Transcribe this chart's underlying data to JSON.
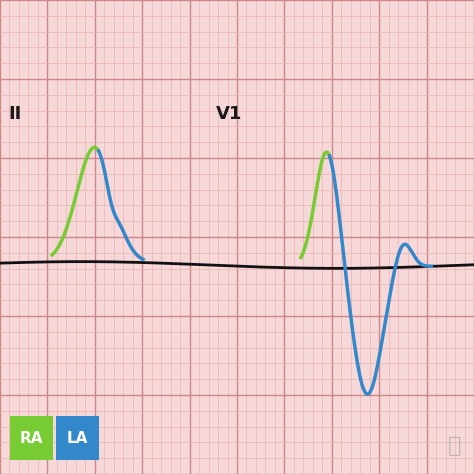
{
  "bg_color": "#f7d8d8",
  "grid_minor_color": "#e8b4b4",
  "grid_major_color": "#cc8888",
  "label_II": "II",
  "label_V1": "V1",
  "label_RA": "RA",
  "label_LA": "LA",
  "ra_color": "#77cc33",
  "la_color": "#3388cc",
  "baseline_color": "#111111",
  "ecg_lw": 2.5,
  "baseline_lw": 2.0,
  "figsize": [
    4.74,
    4.74
  ],
  "dpi": 100
}
